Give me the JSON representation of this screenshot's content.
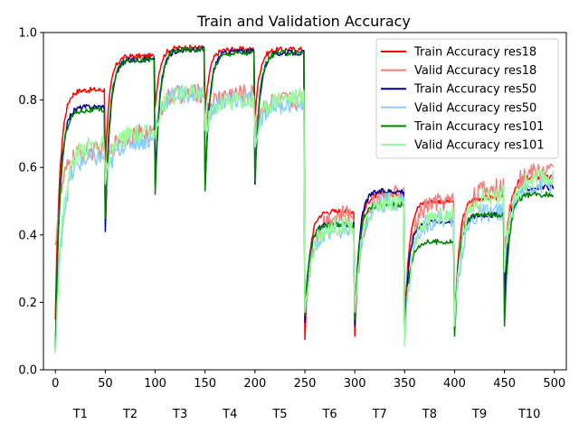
{
  "chart_data": {
    "type": "line",
    "title": "Train and Validation Accuracy",
    "xlabel": "",
    "ylabel": "",
    "xlim": [
      -12,
      512
    ],
    "ylim": [
      0.0,
      1.0
    ],
    "x_ticks": [
      0,
      50,
      100,
      150,
      200,
      250,
      300,
      350,
      400,
      450,
      500
    ],
    "x_tick_labels": [
      "0",
      "50",
      "100",
      "150",
      "200",
      "250",
      "300",
      "350",
      "400",
      "450",
      "500"
    ],
    "y_ticks": [
      0.0,
      0.2,
      0.4,
      0.6,
      0.8,
      1.0
    ],
    "y_tick_labels": [
      "0.0",
      "0.2",
      "0.4",
      "0.6",
      "0.8",
      "1.0"
    ],
    "grid": false,
    "legend_position": "top-right",
    "task_labels": [
      "T1",
      "T2",
      "T3",
      "T4",
      "T5",
      "T6",
      "T7",
      "T8",
      "T9",
      "T10"
    ],
    "task_starts": [
      0,
      50,
      100,
      150,
      200,
      250,
      300,
      350,
      400,
      450
    ],
    "series": [
      {
        "name": "Train Accuracy res18",
        "color": "#ff0000",
        "tasks": [
          {
            "start": 0.15,
            "end": 0.83
          },
          {
            "start": 0.62,
            "end": 0.93
          },
          {
            "start": 0.78,
            "end": 0.955
          },
          {
            "start": 0.76,
            "end": 0.95
          },
          {
            "start": 0.75,
            "end": 0.95
          },
          {
            "start": 0.09,
            "end": 0.47
          },
          {
            "start": 0.1,
            "end": 0.52
          },
          {
            "start": 0.13,
            "end": 0.5
          },
          {
            "start": 0.11,
            "end": 0.51
          },
          {
            "start": 0.25,
            "end": 0.57
          }
        ]
      },
      {
        "name": "Valid Accuracy res18",
        "color": "#f08080",
        "tasks": [
          {
            "start": 0.37,
            "end": 0.65
          },
          {
            "start": 0.58,
            "end": 0.7
          },
          {
            "start": 0.72,
            "end": 0.82
          },
          {
            "start": 0.74,
            "end": 0.82
          },
          {
            "start": 0.73,
            "end": 0.8
          },
          {
            "start": 0.14,
            "end": 0.46
          },
          {
            "start": 0.14,
            "end": 0.52
          },
          {
            "start": 0.16,
            "end": 0.5
          },
          {
            "start": 0.16,
            "end": 0.54
          },
          {
            "start": 0.34,
            "end": 0.59
          }
        ]
      },
      {
        "name": "Train Accuracy res50",
        "color": "#00008b",
        "tasks": [
          {
            "start": 0.06,
            "end": 0.78
          },
          {
            "start": 0.41,
            "end": 0.92
          },
          {
            "start": 0.55,
            "end": 0.95
          },
          {
            "start": 0.54,
            "end": 0.945
          },
          {
            "start": 0.55,
            "end": 0.94
          },
          {
            "start": 0.14,
            "end": 0.43
          },
          {
            "start": 0.13,
            "end": 0.53
          },
          {
            "start": 0.11,
            "end": 0.44
          },
          {
            "start": 0.12,
            "end": 0.46
          },
          {
            "start": 0.21,
            "end": 0.54
          }
        ]
      },
      {
        "name": "Valid Accuracy res50",
        "color": "#87cefa",
        "tasks": [
          {
            "start": 0.08,
            "end": 0.63
          },
          {
            "start": 0.52,
            "end": 0.68
          },
          {
            "start": 0.72,
            "end": 0.82
          },
          {
            "start": 0.7,
            "end": 0.8
          },
          {
            "start": 0.68,
            "end": 0.79
          },
          {
            "start": 0.17,
            "end": 0.42
          },
          {
            "start": 0.18,
            "end": 0.5
          },
          {
            "start": 0.11,
            "end": 0.45
          },
          {
            "start": 0.12,
            "end": 0.47
          },
          {
            "start": 0.3,
            "end": 0.55
          }
        ]
      },
      {
        "name": "Train Accuracy res101",
        "color": "#008000",
        "tasks": [
          {
            "start": 0.05,
            "end": 0.77
          },
          {
            "start": 0.45,
            "end": 0.92
          },
          {
            "start": 0.52,
            "end": 0.95
          },
          {
            "start": 0.53,
            "end": 0.94
          },
          {
            "start": 0.56,
            "end": 0.94
          },
          {
            "start": 0.16,
            "end": 0.43
          },
          {
            "start": 0.15,
            "end": 0.49
          },
          {
            "start": 0.09,
            "end": 0.38
          },
          {
            "start": 0.1,
            "end": 0.46
          },
          {
            "start": 0.13,
            "end": 0.52
          }
        ]
      },
      {
        "name": "Valid Accuracy res101",
        "color": "#98fb98",
        "tasks": [
          {
            "start": 0.05,
            "end": 0.67
          },
          {
            "start": 0.55,
            "end": 0.7
          },
          {
            "start": 0.71,
            "end": 0.82
          },
          {
            "start": 0.71,
            "end": 0.8
          },
          {
            "start": 0.66,
            "end": 0.81
          },
          {
            "start": 0.17,
            "end": 0.43
          },
          {
            "start": 0.17,
            "end": 0.5
          },
          {
            "start": 0.07,
            "end": 0.46
          },
          {
            "start": 0.13,
            "end": 0.52
          },
          {
            "start": 0.29,
            "end": 0.57
          }
        ]
      }
    ]
  }
}
